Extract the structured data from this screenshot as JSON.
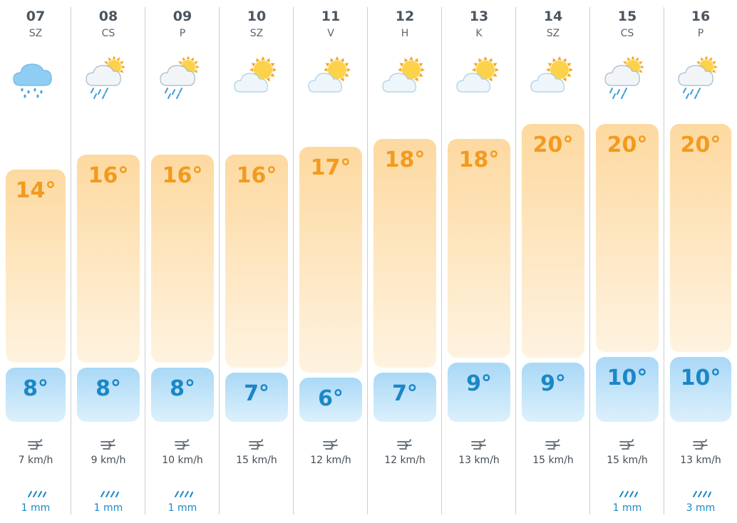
{
  "colors": {
    "high": "#f39a1e",
    "low": "#1b87c6",
    "high_bar": "#fdd9a0",
    "low_bar": "#a9d8f6"
  },
  "chart_data": {
    "type": "bar",
    "categories": [
      "07",
      "08",
      "09",
      "10",
      "11",
      "12",
      "13",
      "14",
      "15",
      "16"
    ],
    "series": [
      {
        "values": [
          14,
          16,
          16,
          16,
          17,
          18,
          18,
          20,
          20,
          20
        ]
      },
      {
        "values": [
          8,
          8,
          8,
          7,
          6,
          7,
          9,
          9,
          10,
          10
        ]
      }
    ],
    "ylim": [
      6,
      20
    ],
    "grid": false
  },
  "days": [
    {
      "num": "07",
      "name": "SZ",
      "icon": "rain-cloud-icon",
      "high": "14°",
      "low": "8°",
      "wind": "7 km/h",
      "precip": "1 mm"
    },
    {
      "num": "08",
      "name": "CS",
      "icon": "sun-rain-cloud-icon",
      "high": "16°",
      "low": "8°",
      "wind": "9 km/h",
      "precip": "1 mm"
    },
    {
      "num": "09",
      "name": "P",
      "icon": "sun-rain-cloud-icon",
      "high": "16°",
      "low": "8°",
      "wind": "10 km/h",
      "precip": "1 mm"
    },
    {
      "num": "10",
      "name": "SZ",
      "icon": "partly-cloudy-icon",
      "high": "16°",
      "low": "7°",
      "wind": "15 km/h",
      "precip": ""
    },
    {
      "num": "11",
      "name": "V",
      "icon": "partly-cloudy-icon",
      "high": "17°",
      "low": "6°",
      "wind": "12 km/h",
      "precip": ""
    },
    {
      "num": "12",
      "name": "H",
      "icon": "partly-cloudy-icon",
      "high": "18°",
      "low": "7°",
      "wind": "12 km/h",
      "precip": ""
    },
    {
      "num": "13",
      "name": "K",
      "icon": "partly-cloudy-icon",
      "high": "18°",
      "low": "9°",
      "wind": "13 km/h",
      "precip": ""
    },
    {
      "num": "14",
      "name": "SZ",
      "icon": "partly-cloudy-icon",
      "high": "20°",
      "low": "9°",
      "wind": "15 km/h",
      "precip": ""
    },
    {
      "num": "15",
      "name": "CS",
      "icon": "sun-rain-cloud-icon",
      "high": "20°",
      "low": "10°",
      "wind": "15 km/h",
      "precip": "1 mm"
    },
    {
      "num": "16",
      "name": "P",
      "icon": "sun-rain-cloud-icon",
      "high": "20°",
      "low": "10°",
      "wind": "13 km/h",
      "precip": "3 mm"
    }
  ]
}
